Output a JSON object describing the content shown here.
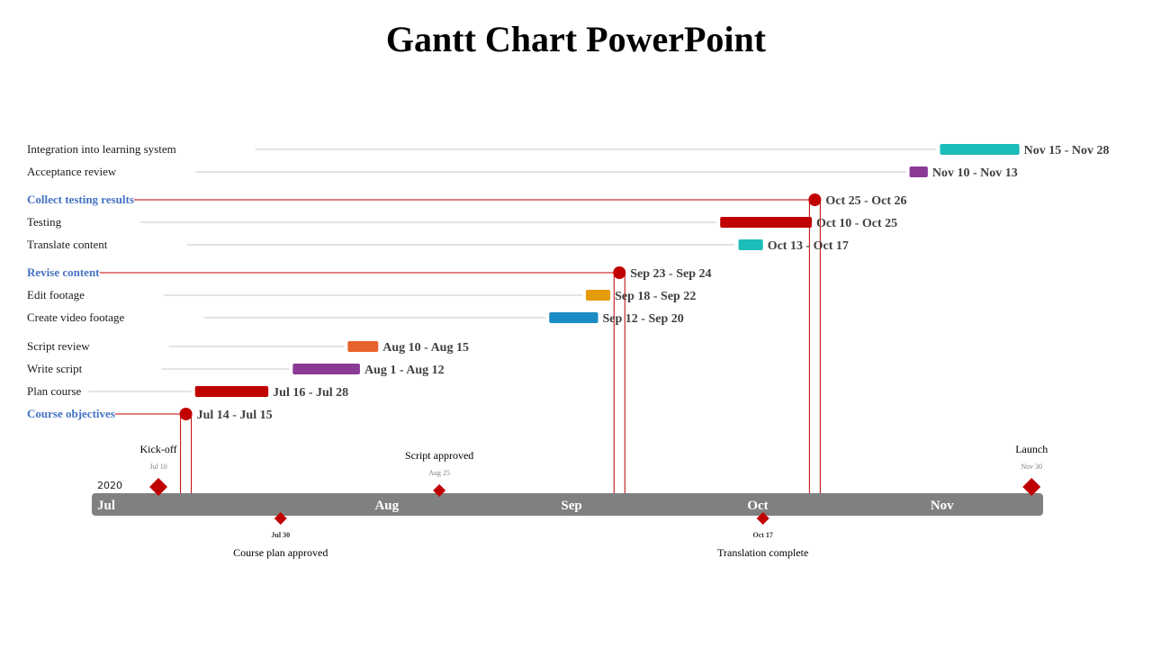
{
  "title": "Gantt Chart PowerPoint",
  "chart_data": {
    "type": "gantt",
    "year": "2020",
    "months": [
      "Jul",
      "Aug",
      "Sep",
      "Oct",
      "Nov"
    ],
    "tasks": [
      {
        "name": "Integration into learning system",
        "start": "2020-11-15",
        "end": "2020-11-28",
        "date_label": "Nov 15 - Nov 28",
        "kind": "bar",
        "color": "#1cbcb8"
      },
      {
        "name": "Acceptance review",
        "start": "2020-11-10",
        "end": "2020-11-13",
        "date_label": "Nov 10 - Nov 13",
        "kind": "bar",
        "color": "#8b3a96"
      },
      {
        "name": "Collect testing results",
        "start": "2020-10-25",
        "end": "2020-10-26",
        "date_label": "Oct 25 - Oct 26",
        "kind": "milestone",
        "color": "#c00000"
      },
      {
        "name": "Testing",
        "start": "2020-10-10",
        "end": "2020-10-25",
        "date_label": "Oct 10 - Oct 25",
        "kind": "bar",
        "color": "#c00000"
      },
      {
        "name": "Translate content",
        "start": "2020-10-13",
        "end": "2020-10-17",
        "date_label": "Oct 13 - Oct 17",
        "kind": "bar",
        "color": "#1cbcb8"
      },
      {
        "name": "Revise content",
        "start": "2020-09-23",
        "end": "2020-09-24",
        "date_label": "Sep 23 - Sep 24",
        "kind": "milestone",
        "color": "#c00000"
      },
      {
        "name": "Edit footage",
        "start": "2020-09-18",
        "end": "2020-09-22",
        "date_label": "Sep 18 - Sep 22",
        "kind": "bar",
        "color": "#e59a0a"
      },
      {
        "name": "Create video footage",
        "start": "2020-09-12",
        "end": "2020-09-20",
        "date_label": "Sep 12 - Sep 20",
        "kind": "bar",
        "color": "#1a8bc4"
      },
      {
        "name": "Script review",
        "start": "2020-08-10",
        "end": "2020-08-15",
        "date_label": "Aug 10 - Aug 15",
        "kind": "bar",
        "color": "#e8632c"
      },
      {
        "name": "Write script",
        "start": "2020-08-01",
        "end": "2020-08-12",
        "date_label": "Aug 1 - Aug 12",
        "kind": "bar",
        "color": "#8b3a96"
      },
      {
        "name": "Plan course",
        "start": "2020-07-16",
        "end": "2020-07-28",
        "date_label": "Jul 16 - Jul 28",
        "kind": "bar",
        "color": "#c00000"
      },
      {
        "name": "Course objectives",
        "start": "2020-07-14",
        "end": "2020-07-15",
        "date_label": "Jul 14 - Jul 15",
        "kind": "milestone",
        "color": "#c00000"
      }
    ],
    "milestones": [
      {
        "name": "Kick-off",
        "date": "2020-07-10",
        "date_label": "Jul 10",
        "position": "above",
        "size": "large"
      },
      {
        "name": "Course plan approved",
        "date": "2020-07-30",
        "date_label": "Jul 30",
        "position": "below",
        "size": "small"
      },
      {
        "name": "Script approved",
        "date": "2020-08-25",
        "date_label": "Aug 25",
        "position": "above",
        "size": "small"
      },
      {
        "name": "Translation complete",
        "date": "2020-10-17",
        "date_label": "Oct 17",
        "position": "below",
        "size": "small"
      },
      {
        "name": "Launch",
        "date": "2020-11-30",
        "date_label": "Nov 30",
        "position": "above",
        "size": "large"
      }
    ],
    "colors": {
      "timeline": "#808080",
      "milestone": "#c00000",
      "gridline": "#c8c8c8",
      "milestone_task_label": "#4472c4"
    }
  }
}
